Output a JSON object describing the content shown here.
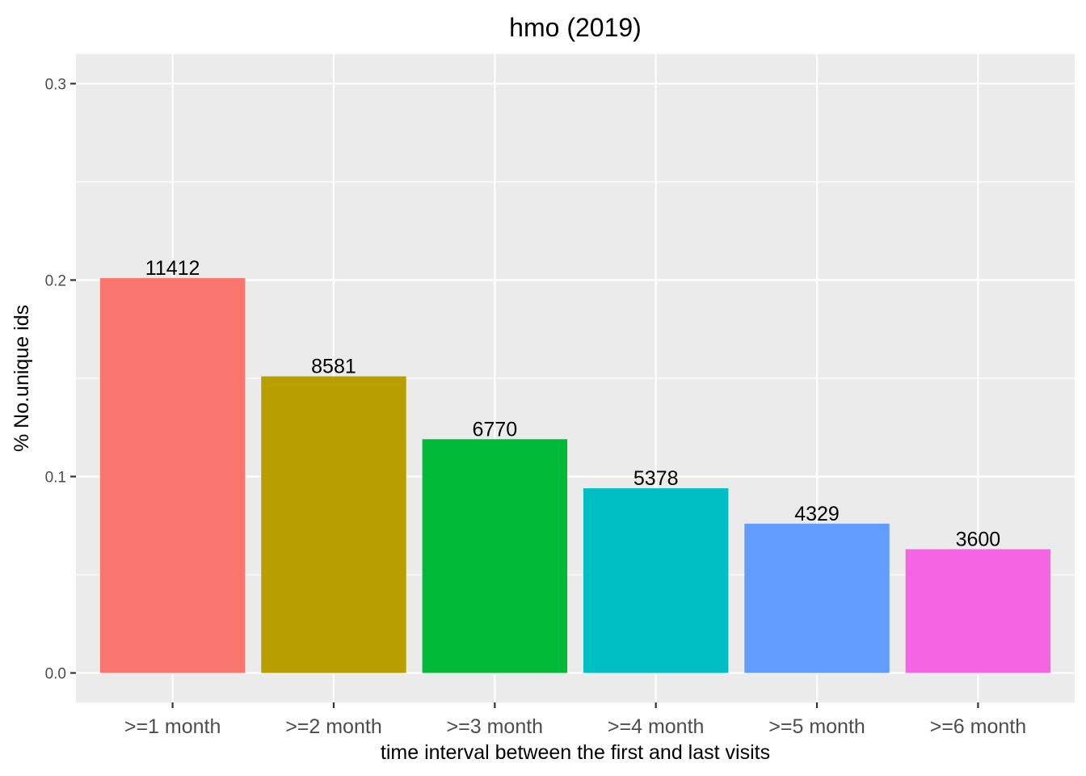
{
  "chart_data": {
    "type": "bar",
    "title": "hmo (2019)",
    "xlabel": "time interval between the first and last visits",
    "ylabel": "% No.unique ids",
    "categories": [
      ">=1 month",
      ">=2 month",
      ">=3 month",
      ">=4 month",
      ">=5 month",
      ">=6 month"
    ],
    "values": [
      0.201,
      0.151,
      0.119,
      0.094,
      0.076,
      0.063
    ],
    "data_labels": [
      "11412",
      "8581",
      "6770",
      "5378",
      "4329",
      "3600"
    ],
    "colors": [
      "#F8766D",
      "#B79F00",
      "#00BA38",
      "#00BFC4",
      "#619CFF",
      "#F564E3"
    ],
    "yticks": [
      0.0,
      0.1,
      0.2,
      0.3
    ],
    "ytick_labels": [
      "0.0",
      "0.1",
      "0.2",
      "0.3"
    ],
    "ylim": [
      -0.015,
      0.315
    ],
    "grid": true,
    "legend": "none",
    "panel_background": "#EBEBEB"
  }
}
